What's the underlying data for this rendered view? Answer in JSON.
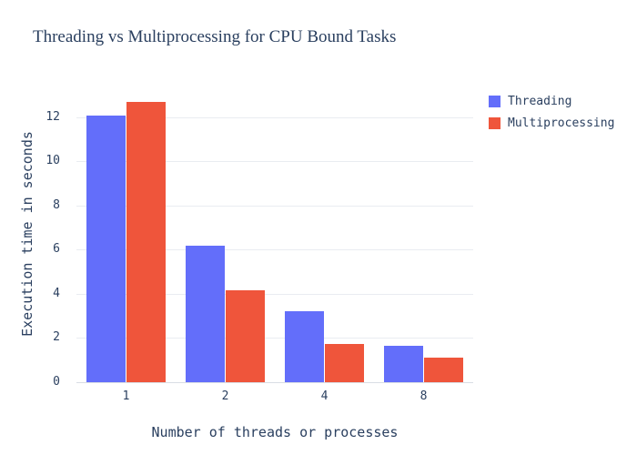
{
  "chart_data": {
    "type": "bar",
    "title": "Threading vs Multiprocessing for CPU Bound Tasks",
    "xlabel": "Number of threads or processes",
    "ylabel": "Execution time in seconds",
    "categories": [
      "1",
      "2",
      "4",
      "8"
    ],
    "series": [
      {
        "name": "Threading",
        "color": "#636EFA",
        "values": [
          12.1,
          6.2,
          3.2,
          1.65
        ]
      },
      {
        "name": "Multiprocessing",
        "color": "#EF553B",
        "values": [
          12.7,
          4.15,
          1.75,
          1.1
        ]
      }
    ],
    "yticks": [
      0,
      2,
      4,
      6,
      8,
      10,
      12
    ],
    "ylim": [
      0,
      13.4
    ],
    "grid": true,
    "legend_position": "right"
  },
  "colors": {
    "title": "#2a3f5f",
    "axis_text": "#2a3f5f",
    "grid": "#e9ecf1",
    "background": "#ffffff"
  }
}
